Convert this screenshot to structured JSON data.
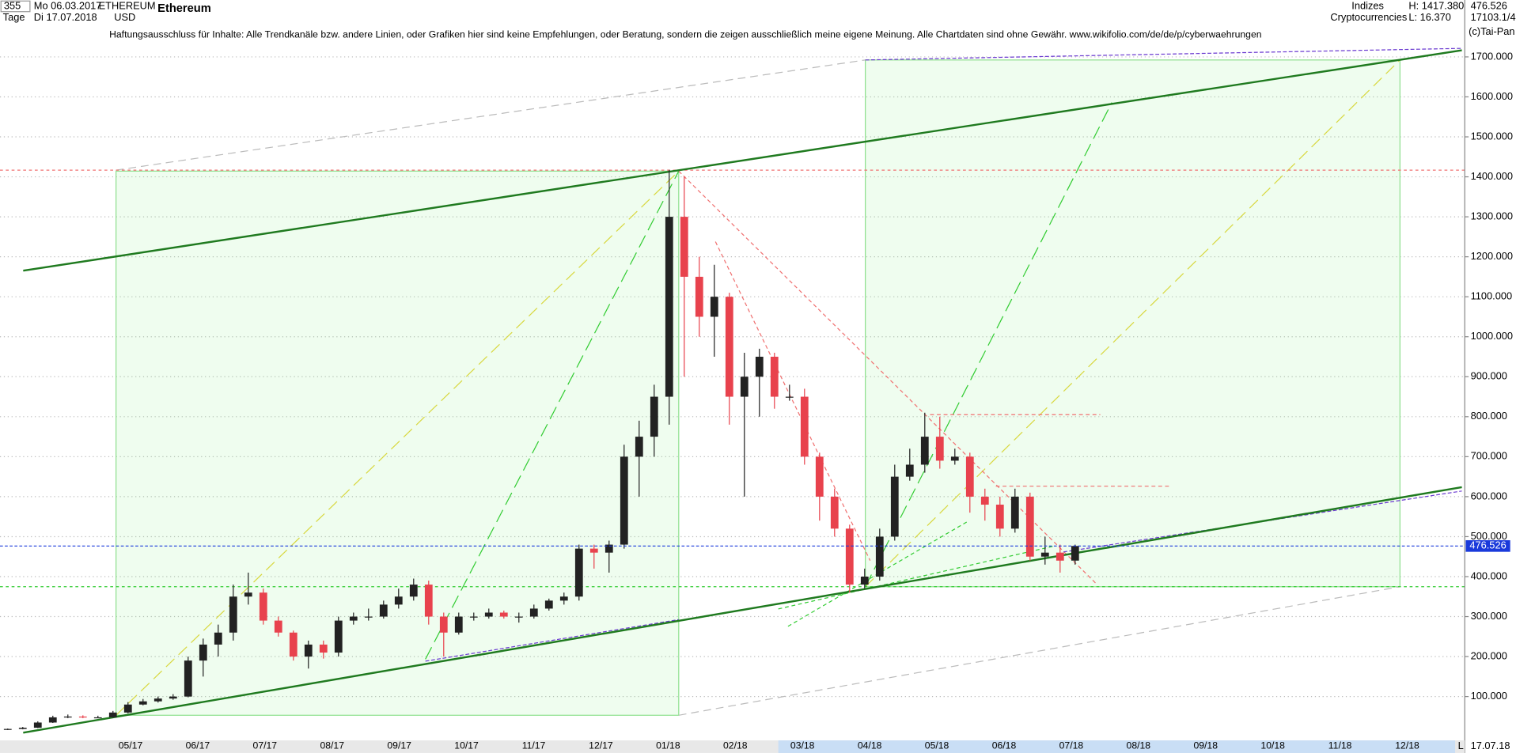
{
  "header": {
    "bars": "355",
    "start_day": "Mo 06.03.2017",
    "period": "Tage",
    "end_day": "Di 17.07.2018",
    "symbol": "ETHEREUM",
    "currency": "USD",
    "name": "Ethereum",
    "group": "Indizes",
    "subgroup": "Cryptocurrencies",
    "high": "H: 1417.380",
    "low": "L: 16.370",
    "last": "476.526",
    "code": "17103.1/4",
    "disclaimer": "Haftungsausschluss für Inhalte: Alle Trendkanäle bzw. andere Linien, oder Grafiken hier sind keine Empfehlungen, oder Beratung, sondern die zeigen ausschließlich meine eigene Meinung. Alle Chartdaten sind ohne Gewähr.  www.wikifolio.com/de/de/p/cyberwaehrungen",
    "copyright": "(c)Tai-Pan",
    "footer_date": "17.07.18",
    "footer_mode": "L"
  },
  "chart_data": {
    "type": "candlestick",
    "title": "Ethereum",
    "x_labels": [
      "05/17",
      "06/17",
      "07/17",
      "08/17",
      "09/17",
      "10/17",
      "11/17",
      "12/17",
      "01/18",
      "02/18",
      "03/18",
      "04/18",
      "05/18",
      "06/18",
      "07/18",
      "08/18",
      "09/18",
      "10/18",
      "11/18",
      "12/18"
    ],
    "open": [
      17,
      19,
      22,
      35,
      48,
      50,
      48,
      48,
      60,
      80,
      88,
      95,
      100,
      190,
      230,
      260,
      350,
      360,
      290,
      260,
      200,
      230,
      210,
      290,
      300,
      300,
      330,
      350,
      380,
      300,
      260,
      300,
      300,
      310,
      300,
      300,
      320,
      340,
      350,
      470,
      460,
      480,
      700,
      750,
      850,
      1300,
      1150,
      1050,
      1100,
      850,
      900,
      950,
      850,
      850,
      700,
      600,
      520,
      380,
      400,
      500,
      650,
      680,
      750,
      690,
      700,
      600,
      580,
      520,
      600,
      450,
      460,
      440
    ],
    "high": [
      20,
      24,
      38,
      52,
      55,
      53,
      52,
      64,
      86,
      94,
      100,
      106,
      200,
      245,
      280,
      380,
      410,
      370,
      300,
      265,
      240,
      240,
      300,
      310,
      320,
      340,
      370,
      395,
      390,
      310,
      310,
      310,
      320,
      315,
      310,
      330,
      345,
      360,
      480,
      480,
      490,
      730,
      790,
      880,
      1417.38,
      1400,
      1200,
      1180,
      1110,
      960,
      970,
      960,
      880,
      870,
      710,
      620,
      530,
      420,
      520,
      680,
      720,
      810,
      800,
      720,
      710,
      620,
      600,
      620,
      610,
      500,
      480,
      480
    ],
    "low": [
      16.37,
      18,
      21,
      34,
      46,
      46,
      46,
      47,
      58,
      78,
      85,
      92,
      98,
      150,
      200,
      240,
      330,
      280,
      250,
      190,
      170,
      195,
      200,
      280,
      290,
      295,
      320,
      340,
      280,
      200,
      255,
      290,
      295,
      295,
      285,
      295,
      315,
      330,
      340,
      420,
      410,
      470,
      600,
      700,
      780,
      900,
      1000,
      950,
      780,
      600,
      800,
      820,
      840,
      680,
      540,
      500,
      360,
      370,
      390,
      490,
      640,
      660,
      670,
      680,
      560,
      540,
      500,
      510,
      440,
      430,
      410,
      430
    ],
    "close": [
      19,
      22,
      35,
      48,
      50,
      48,
      48,
      60,
      80,
      88,
      95,
      100,
      190,
      230,
      260,
      350,
      360,
      290,
      260,
      200,
      230,
      210,
      290,
      300,
      300,
      330,
      350,
      380,
      300,
      260,
      300,
      300,
      310,
      300,
      300,
      320,
      340,
      350,
      470,
      460,
      480,
      700,
      750,
      850,
      1300,
      1150,
      1050,
      1100,
      850,
      900,
      950,
      850,
      850,
      700,
      600,
      520,
      380,
      400,
      500,
      650,
      680,
      750,
      690,
      700,
      600,
      580,
      520,
      600,
      450,
      460,
      440,
      476.526
    ],
    "up_color": "#222222",
    "down_color": "#e8424d",
    "last_price": {
      "value": 476.526,
      "label": "476.526"
    },
    "ylim": [
      0,
      1760
    ],
    "yticks": [
      {
        "value": 100,
        "label": "100.000"
      },
      {
        "value": 200,
        "label": "200.000"
      },
      {
        "value": 300,
        "label": "300.000"
      },
      {
        "value": 400,
        "label": "400.000"
      },
      {
        "value": 500,
        "label": "500.000"
      },
      {
        "value": 600,
        "label": "600.000"
      },
      {
        "value": 700,
        "label": "700.000"
      },
      {
        "value": 800,
        "label": "800.000"
      },
      {
        "value": 900,
        "label": "900.000"
      },
      {
        "value": 1000,
        "label": "1000.000"
      },
      {
        "value": 1100,
        "label": "1100.000"
      },
      {
        "value": 1200,
        "label": "1200.000"
      },
      {
        "value": 1300,
        "label": "1300.000"
      },
      {
        "value": 1400,
        "label": "1400.000"
      },
      {
        "value": 1500,
        "label": "1500.000"
      },
      {
        "value": 1600,
        "label": "1600.000"
      },
      {
        "value": 1700,
        "label": "1700.000"
      }
    ],
    "grid": true
  }
}
